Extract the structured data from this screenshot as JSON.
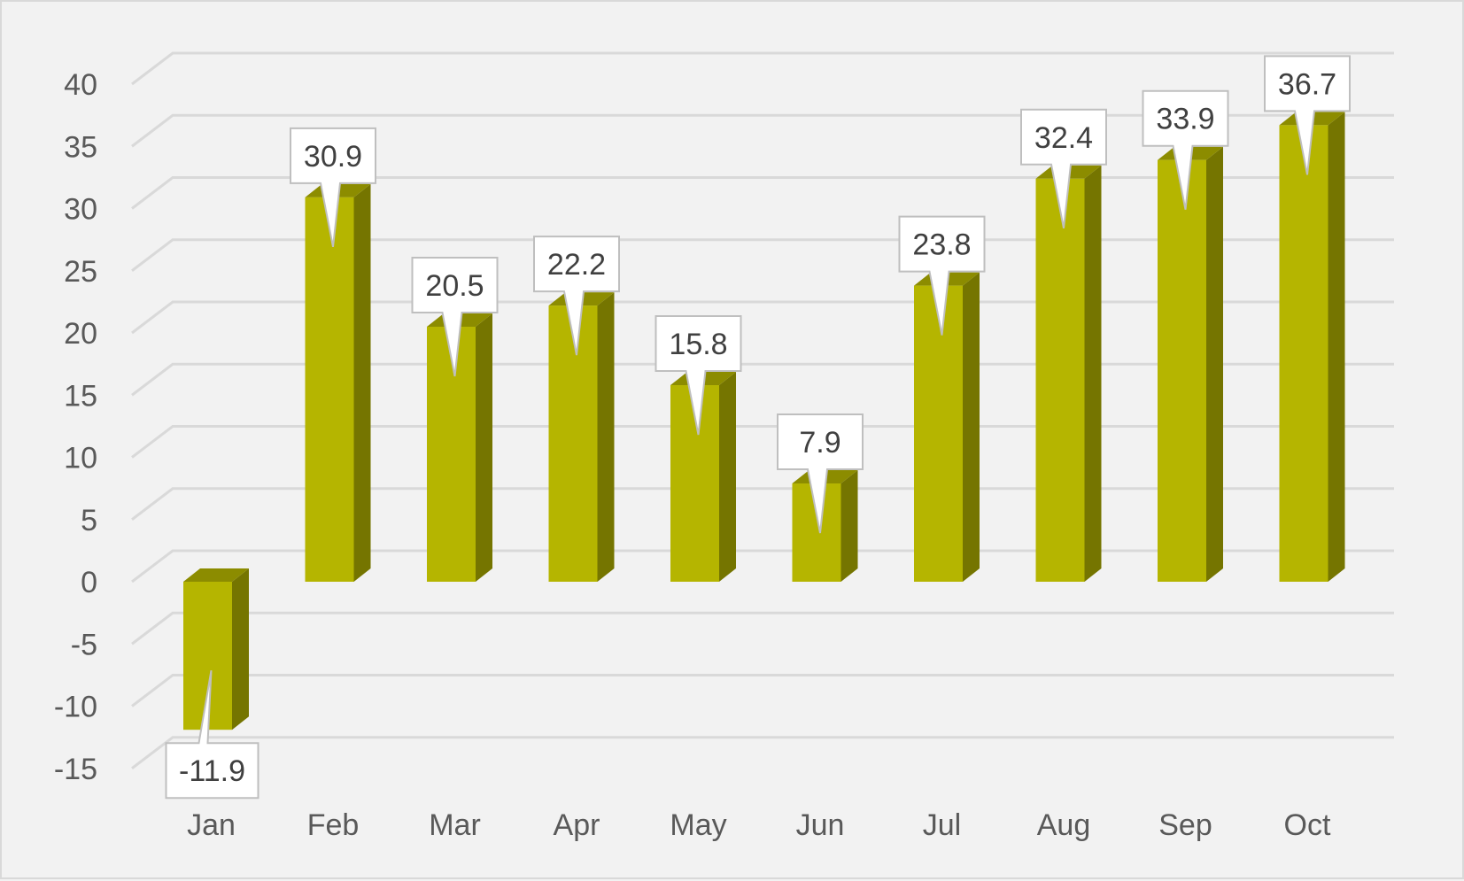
{
  "chart_data": {
    "type": "bar",
    "title": "",
    "xlabel": "",
    "ylabel": "",
    "categories": [
      "Jan",
      "Feb",
      "Mar",
      "Apr",
      "May",
      "Jun",
      "Jul",
      "Aug",
      "Sep",
      "Oct"
    ],
    "series": [
      {
        "values": [
          -11.9,
          30.9,
          20.5,
          22.2,
          15.8,
          7.9,
          23.8,
          32.4,
          33.9,
          36.7
        ]
      }
    ],
    "data_labels": [
      "-11.9",
      "30.9",
      "20.5",
      "22.2",
      "15.8",
      "7.9",
      "23.8",
      "32.4",
      "33.9",
      "36.7"
    ],
    "ylim": [
      -15,
      40
    ],
    "yticks": [
      "40",
      "35",
      "30",
      "25",
      "20",
      "15",
      "10",
      "5",
      "0",
      "-5",
      "-10",
      "-15"
    ],
    "grid": true,
    "legend": "none",
    "style": "3d-column with callout data labels",
    "colors": {
      "bar_front": "#b5b500",
      "bar_side": "#757500",
      "bar_top": "#8c8c00",
      "grid": "#d9d9d9",
      "background": "#f2f2f2",
      "label_box": "#ffffff",
      "label_border": "#bfbfbf"
    }
  }
}
